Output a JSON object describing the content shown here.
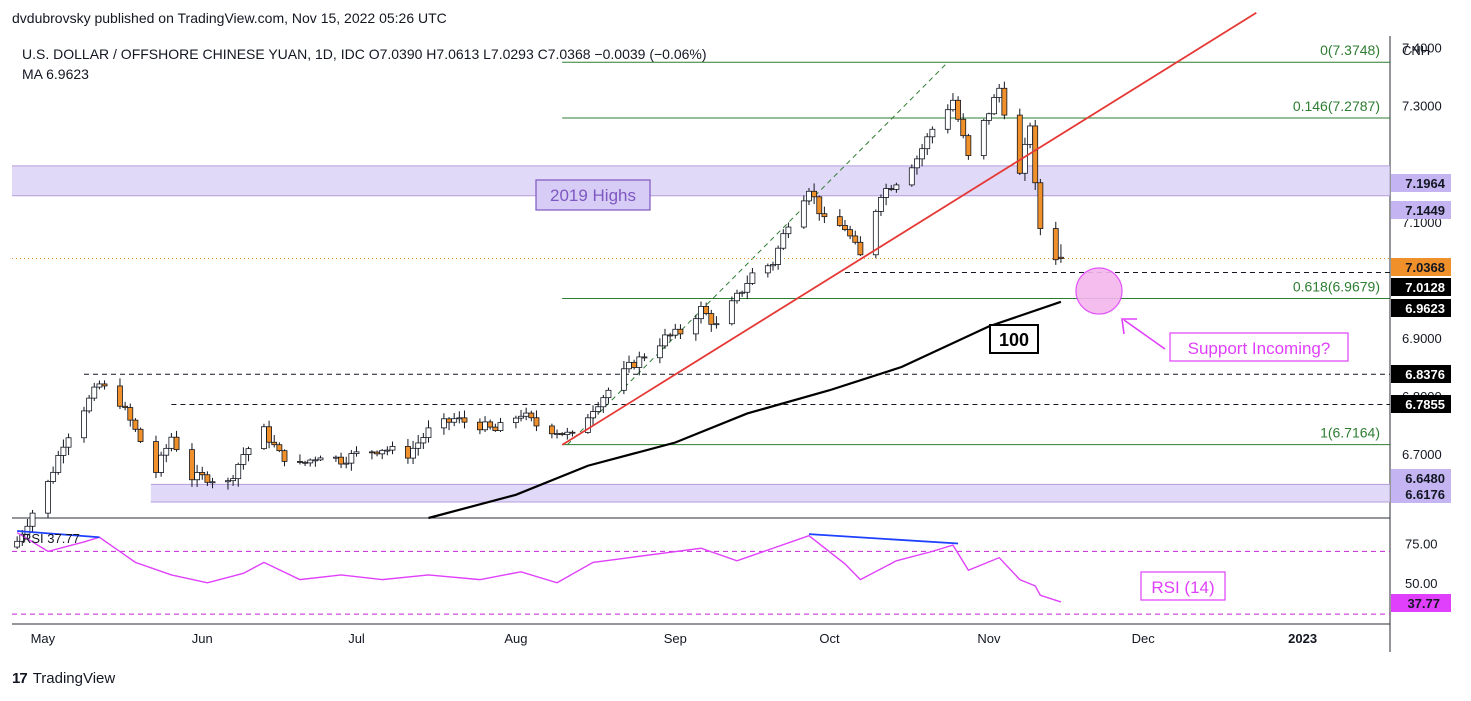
{
  "publisher_line": "dvdubrovsky published on TradingView.com, Nov 15, 2022 05:26 UTC",
  "header": {
    "symbol_line": "U.S. DOLLAR / OFFSHORE CHINESE YUAN, 1D, IDC  O7.0390  H7.0613  L7.0293  C7.0368  −0.0039 (−0.06%)",
    "ma_line": "MA  6.9623"
  },
  "currency_label": "CNH",
  "footer_brand": "TradingView",
  "colors": {
    "up_candle": "#ffffff",
    "down_candle": "#f0902a",
    "candle_outline": "#131722",
    "ma_line": "#000000",
    "trendline": "#e53935",
    "fib_line": "#2e7d32",
    "zone_fill": "#d7ccf5",
    "zone_label": "#7e57c2",
    "rsi_line": "#e040fb",
    "annotation_magenta": "#e040fb",
    "divergence_line": "#1e40ff",
    "current_price": "#f0902a"
  },
  "chart_data": {
    "type": "candlestick",
    "title": "U.S. DOLLAR / OFFSHORE CHINESE YUAN, 1D, IDC",
    "ylim": [
      6.59,
      7.42
    ],
    "y_ticks": [
      "7.4000",
      "7.3000",
      "7.1000",
      "6.9000",
      "6.8000",
      "6.7000"
    ],
    "x_ticks": [
      {
        "label": "May",
        "date": "2022-05-01"
      },
      {
        "label": "Jun",
        "date": "2022-06-01"
      },
      {
        "label": "Jul",
        "date": "2022-07-01"
      },
      {
        "label": "Aug",
        "date": "2022-08-01"
      },
      {
        "label": "Sep",
        "date": "2022-09-01"
      },
      {
        "label": "Oct",
        "date": "2022-10-01"
      },
      {
        "label": "Nov",
        "date": "2022-11-01"
      },
      {
        "label": "Dec",
        "date": "2022-12-01"
      },
      {
        "label": "2023",
        "date": "2023-01-01"
      }
    ],
    "last_ohlc": {
      "open": 7.039,
      "high": 7.0613,
      "low": 7.0293,
      "close": 7.0368,
      "change": -0.0039,
      "change_pct": -0.06
    },
    "close_series": [
      {
        "date": "2022-04-26",
        "close": 6.55
      },
      {
        "date": "2022-05-02",
        "close": 6.65
      },
      {
        "date": "2022-05-05",
        "close": 6.72
      },
      {
        "date": "2022-05-09",
        "close": 6.78
      },
      {
        "date": "2022-05-12",
        "close": 6.82
      },
      {
        "date": "2022-05-16",
        "close": 6.79
      },
      {
        "date": "2022-05-19",
        "close": 6.74
      },
      {
        "date": "2022-05-23",
        "close": 6.67
      },
      {
        "date": "2022-05-26",
        "close": 6.73
      },
      {
        "date": "2022-05-30",
        "close": 6.66
      },
      {
        "date": "2022-06-02",
        "close": 6.66
      },
      {
        "date": "2022-06-06",
        "close": 6.65
      },
      {
        "date": "2022-06-09",
        "close": 6.7
      },
      {
        "date": "2022-06-13",
        "close": 6.74
      },
      {
        "date": "2022-06-16",
        "close": 6.7
      },
      {
        "date": "2022-06-20",
        "close": 6.68
      },
      {
        "date": "2022-06-24",
        "close": 6.7
      },
      {
        "date": "2022-06-28",
        "close": 6.69
      },
      {
        "date": "2022-07-01",
        "close": 6.7
      },
      {
        "date": "2022-07-06",
        "close": 6.71
      },
      {
        "date": "2022-07-11",
        "close": 6.7
      },
      {
        "date": "2022-07-15",
        "close": 6.74
      },
      {
        "date": "2022-07-20",
        "close": 6.76
      },
      {
        "date": "2022-07-25",
        "close": 6.75
      },
      {
        "date": "2022-07-28",
        "close": 6.74
      },
      {
        "date": "2022-08-02",
        "close": 6.77
      },
      {
        "date": "2022-08-05",
        "close": 6.75
      },
      {
        "date": "2022-08-09",
        "close": 6.74
      },
      {
        "date": "2022-08-12",
        "close": 6.73
      },
      {
        "date": "2022-08-16",
        "close": 6.78
      },
      {
        "date": "2022-08-19",
        "close": 6.81
      },
      {
        "date": "2022-08-23",
        "close": 6.85
      },
      {
        "date": "2022-08-26",
        "close": 6.87
      },
      {
        "date": "2022-08-30",
        "close": 6.9
      },
      {
        "date": "2022-09-02",
        "close": 6.91
      },
      {
        "date": "2022-09-06",
        "close": 6.95
      },
      {
        "date": "2022-09-09",
        "close": 6.92
      },
      {
        "date": "2022-09-13",
        "close": 6.97
      },
      {
        "date": "2022-09-16",
        "close": 7.01
      },
      {
        "date": "2022-09-20",
        "close": 7.03
      },
      {
        "date": "2022-09-23",
        "close": 7.1
      },
      {
        "date": "2022-09-27",
        "close": 7.16
      },
      {
        "date": "2022-09-30",
        "close": 7.1
      },
      {
        "date": "2022-10-04",
        "close": 7.09
      },
      {
        "date": "2022-10-07",
        "close": 7.04
      },
      {
        "date": "2022-10-11",
        "close": 7.15
      },
      {
        "date": "2022-10-14",
        "close": 7.17
      },
      {
        "date": "2022-10-18",
        "close": 7.21
      },
      {
        "date": "2022-10-21",
        "close": 7.26
      },
      {
        "date": "2022-10-25",
        "close": 7.31
      },
      {
        "date": "2022-10-28",
        "close": 7.21
      },
      {
        "date": "2022-11-01",
        "close": 7.29
      },
      {
        "date": "2022-11-03",
        "close": 7.33
      },
      {
        "date": "2022-11-07",
        "close": 7.18
      },
      {
        "date": "2022-11-09",
        "close": 7.27
      },
      {
        "date": "2022-11-10",
        "close": 7.16
      },
      {
        "date": "2022-11-11",
        "close": 7.09
      },
      {
        "date": "2022-11-14",
        "close": 7.0407
      },
      {
        "date": "2022-11-15",
        "close": 7.0368
      }
    ],
    "ma100_series": [
      {
        "date": "2022-07-15",
        "value": 6.59
      },
      {
        "date": "2022-08-01",
        "value": 6.63
      },
      {
        "date": "2022-08-15",
        "value": 6.68
      },
      {
        "date": "2022-09-01",
        "value": 6.72
      },
      {
        "date": "2022-09-15",
        "value": 6.77
      },
      {
        "date": "2022-10-01",
        "value": 6.81
      },
      {
        "date": "2022-10-15",
        "value": 6.85
      },
      {
        "date": "2022-11-01",
        "value": 6.92
      },
      {
        "date": "2022-11-15",
        "value": 6.9623
      }
    ],
    "trendline": [
      {
        "date": "2022-08-10",
        "value": 6.716
      },
      {
        "date": "2022-12-23",
        "value": 7.46
      }
    ],
    "fib_levels": [
      {
        "label": "0(7.3748)",
        "value": 7.3748
      },
      {
        "label": "0.146(7.2787)",
        "value": 7.2787
      },
      {
        "label": "0.618(6.9679)",
        "value": 6.9679
      },
      {
        "label": "1(6.7164)",
        "value": 6.7164
      }
    ],
    "zones": [
      {
        "name": "2019 Highs",
        "top": 7.1964,
        "bottom": 7.1449
      },
      {
        "name": "",
        "top": 6.648,
        "bottom": 6.6176
      }
    ],
    "level_tags": [
      {
        "value": 7.1964,
        "text": "7.1964",
        "style": "zone"
      },
      {
        "value": 7.1449,
        "text": "7.1449",
        "style": "zone"
      },
      {
        "value": 7.0368,
        "text": "7.0368",
        "style": "current"
      },
      {
        "value": 7.0128,
        "text": "7.0128",
        "style": "black"
      },
      {
        "value": 6.9623,
        "text": "6.9623",
        "style": "black"
      },
      {
        "value": 6.8376,
        "text": "6.8376",
        "style": "black"
      },
      {
        "value": 6.7855,
        "text": "6.7855",
        "style": "black"
      },
      {
        "value": 6.648,
        "text": "6.6480",
        "style": "zone"
      },
      {
        "value": 6.6176,
        "text": "6.6176",
        "style": "zone"
      }
    ],
    "dashed_levels": [
      {
        "value": 6.8376,
        "from": "2022-05-09"
      },
      {
        "value": 6.7855,
        "from": "2022-05-26"
      },
      {
        "value": 7.0128,
        "from": "2022-10-04"
      }
    ],
    "annotations": {
      "zone_label": "2019 Highs",
      "ma_label": "100",
      "support_label": "Support Incoming?"
    },
    "rsi": {
      "label": "RSI  37.77",
      "panel_label": "RSI (14)",
      "value": 37.77,
      "ylim": [
        25,
        90
      ],
      "ticks": [
        "75.00",
        "50.00"
      ],
      "bands": [
        70,
        30
      ],
      "series": [
        {
          "date": "2022-04-26",
          "value": 82
        },
        {
          "date": "2022-05-02",
          "value": 70
        },
        {
          "date": "2022-05-09",
          "value": 76
        },
        {
          "date": "2022-05-12",
          "value": 79
        },
        {
          "date": "2022-05-19",
          "value": 63
        },
        {
          "date": "2022-05-26",
          "value": 55
        },
        {
          "date": "2022-06-02",
          "value": 50
        },
        {
          "date": "2022-06-09",
          "value": 56
        },
        {
          "date": "2022-06-13",
          "value": 63
        },
        {
          "date": "2022-06-20",
          "value": 52
        },
        {
          "date": "2022-06-28",
          "value": 55
        },
        {
          "date": "2022-07-06",
          "value": 52
        },
        {
          "date": "2022-07-15",
          "value": 55
        },
        {
          "date": "2022-07-25",
          "value": 52
        },
        {
          "date": "2022-08-02",
          "value": 57
        },
        {
          "date": "2022-08-09",
          "value": 50
        },
        {
          "date": "2022-08-16",
          "value": 63
        },
        {
          "date": "2022-08-23",
          "value": 66
        },
        {
          "date": "2022-08-30",
          "value": 69
        },
        {
          "date": "2022-09-06",
          "value": 72
        },
        {
          "date": "2022-09-13",
          "value": 64
        },
        {
          "date": "2022-09-20",
          "value": 72
        },
        {
          "date": "2022-09-27",
          "value": 80
        },
        {
          "date": "2022-10-04",
          "value": 62
        },
        {
          "date": "2022-10-07",
          "value": 52
        },
        {
          "date": "2022-10-14",
          "value": 64
        },
        {
          "date": "2022-10-21",
          "value": 70
        },
        {
          "date": "2022-10-25",
          "value": 74
        },
        {
          "date": "2022-10-28",
          "value": 58
        },
        {
          "date": "2022-11-03",
          "value": 66
        },
        {
          "date": "2022-11-07",
          "value": 52
        },
        {
          "date": "2022-11-10",
          "value": 48
        },
        {
          "date": "2022-11-11",
          "value": 42
        },
        {
          "date": "2022-11-15",
          "value": 37.77
        }
      ],
      "divergence_lines": [
        [
          {
            "date": "2022-04-26",
            "value": 83
          },
          {
            "date": "2022-05-12",
            "value": 79
          }
        ],
        [
          {
            "date": "2022-09-27",
            "value": 81
          },
          {
            "date": "2022-10-26",
            "value": 75
          }
        ]
      ]
    }
  }
}
